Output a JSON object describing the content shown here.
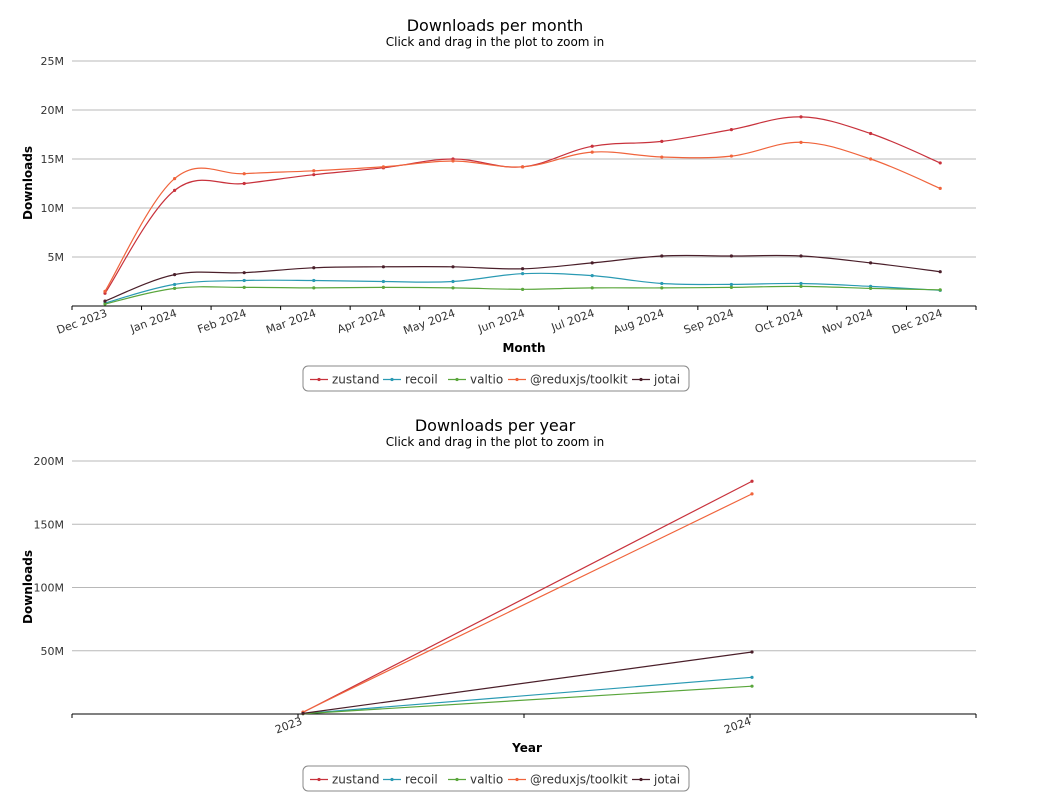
{
  "colors": {
    "zustand": "#c8323c",
    "recoil": "#2a9ab3",
    "valtio": "#5aa63c",
    "@reduxjs/toolkit": "#f0643c",
    "jotai": "#4a1f2a"
  },
  "legend": [
    "zustand",
    "recoil",
    "valtio",
    "@reduxjs/toolkit",
    "jotai"
  ],
  "chart_data": [
    {
      "type": "line",
      "title": "Downloads per month",
      "subtitle": "Click and drag in the plot to zoom in",
      "xlabel": "Month",
      "ylabel": "Downloads",
      "categories": [
        "Dec 2023",
        "Jan 2024",
        "Feb 2024",
        "Mar 2024",
        "Apr 2024",
        "May 2024",
        "Jun 2024",
        "Jul 2024",
        "Aug 2024",
        "Sep 2024",
        "Oct 2024",
        "Nov 2024",
        "Dec 2024"
      ],
      "x_tick_labels": [
        "Dec 2023",
        "Jan 2024",
        "Feb 2024",
        "Mar 2024",
        "Apr 2024",
        "May 2024",
        "Jun 2024",
        "Jul 2024",
        "Aug 2024",
        "Sep 2024",
        "Oct 2024",
        "Nov 2024",
        "Dec 2024"
      ],
      "ylim": [
        0,
        25000000
      ],
      "y_ticks": [
        5000000,
        10000000,
        15000000,
        20000000,
        25000000
      ],
      "y_tick_labels": [
        "5M",
        "10M",
        "15M",
        "20M",
        "25M"
      ],
      "grid": true,
      "legend_position": "bottom",
      "series": [
        {
          "name": "zustand",
          "values": [
            1300000,
            11800000,
            12500000,
            13400000,
            14100000,
            15000000,
            14200000,
            16300000,
            16800000,
            18000000,
            19300000,
            17600000,
            14600000
          ]
        },
        {
          "name": "recoil",
          "values": [
            300000,
            2200000,
            2600000,
            2600000,
            2500000,
            2500000,
            3300000,
            3100000,
            2300000,
            2200000,
            2300000,
            2000000,
            1600000
          ]
        },
        {
          "name": "valtio",
          "values": [
            200000,
            1800000,
            1900000,
            1850000,
            1900000,
            1850000,
            1700000,
            1850000,
            1850000,
            1900000,
            2000000,
            1800000,
            1650000
          ]
        },
        {
          "name": "@reduxjs/toolkit",
          "values": [
            1500000,
            13000000,
            13500000,
            13800000,
            14200000,
            14800000,
            14200000,
            15700000,
            15200000,
            15300000,
            16700000,
            15000000,
            12000000
          ]
        },
        {
          "name": "jotai",
          "values": [
            500000,
            3200000,
            3400000,
            3900000,
            4000000,
            4000000,
            3800000,
            4400000,
            5100000,
            5100000,
            5100000,
            4400000,
            3500000
          ]
        }
      ]
    },
    {
      "type": "line",
      "title": "Downloads per year",
      "subtitle": "Click and drag in the plot to zoom in",
      "xlabel": "Year",
      "ylabel": "Downloads",
      "categories": [
        "2023",
        "2024"
      ],
      "x_tick_labels": [
        "2023",
        "2024"
      ],
      "ylim": [
        0,
        200000000
      ],
      "y_ticks": [
        50000000,
        100000000,
        150000000,
        200000000
      ],
      "y_tick_labels": [
        "50M",
        "100M",
        "150M",
        "200M"
      ],
      "grid": true,
      "legend_position": "bottom",
      "series": [
        {
          "name": "zustand",
          "values": [
            1300000,
            184000000
          ]
        },
        {
          "name": "recoil",
          "values": [
            300000,
            29000000
          ]
        },
        {
          "name": "valtio",
          "values": [
            200000,
            22000000
          ]
        },
        {
          "name": "@reduxjs/toolkit",
          "values": [
            1500000,
            174000000
          ]
        },
        {
          "name": "jotai",
          "values": [
            500000,
            49000000
          ]
        }
      ]
    }
  ]
}
